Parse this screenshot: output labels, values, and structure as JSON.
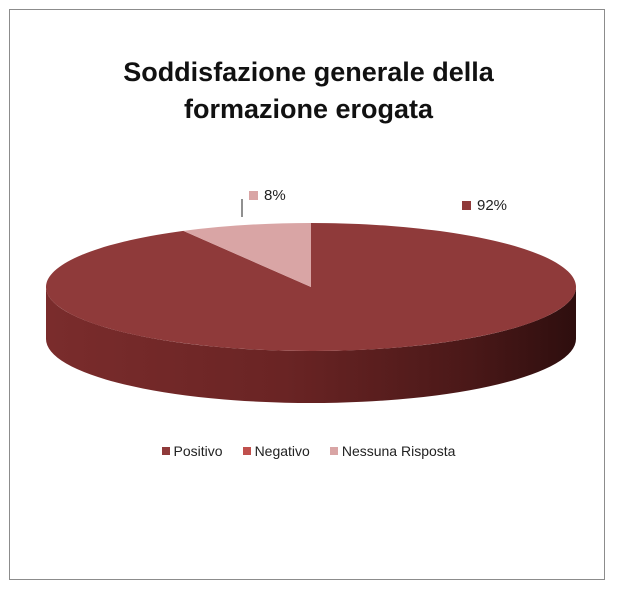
{
  "chart_data": {
    "type": "pie",
    "title_lines": [
      "Soddisfazione generale della",
      "formazione erogata"
    ],
    "categories": [
      "Positivo",
      "Negativo",
      "Nessuna Risposta"
    ],
    "values": [
      92,
      0,
      8
    ],
    "data_labels": [
      "92%",
      "",
      "8%"
    ],
    "colors": [
      "#8f3a3a",
      "#c0504d",
      "#d9a5a5"
    ],
    "legend_position": "bottom",
    "style": "3d"
  }
}
